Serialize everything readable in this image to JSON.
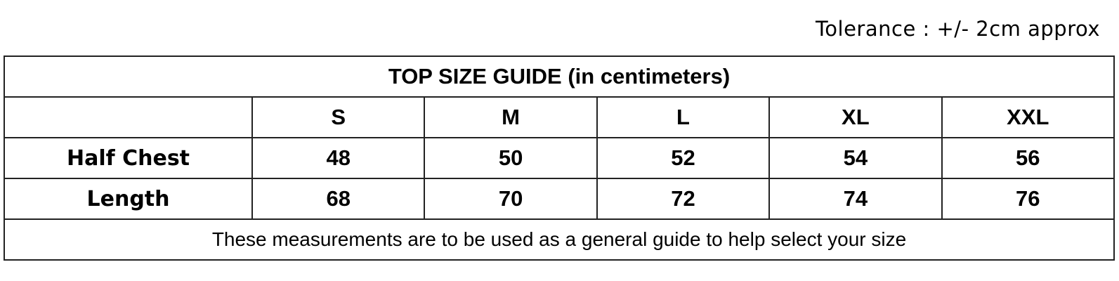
{
  "tolerance": "Tolerance : +/- 2cm approx",
  "table": {
    "title": "TOP SIZE GUIDE (in centimeters)",
    "sizes": [
      "S",
      "M",
      "L",
      "XL",
      "XXL"
    ],
    "rows": [
      {
        "label": "Half Chest",
        "values": [
          "48",
          "50",
          "52",
          "54",
          "56"
        ]
      },
      {
        "label": "Length",
        "values": [
          "68",
          "70",
          "72",
          "74",
          "76"
        ]
      }
    ],
    "footer": "These measurements are to be used as a general guide to help select your size"
  }
}
